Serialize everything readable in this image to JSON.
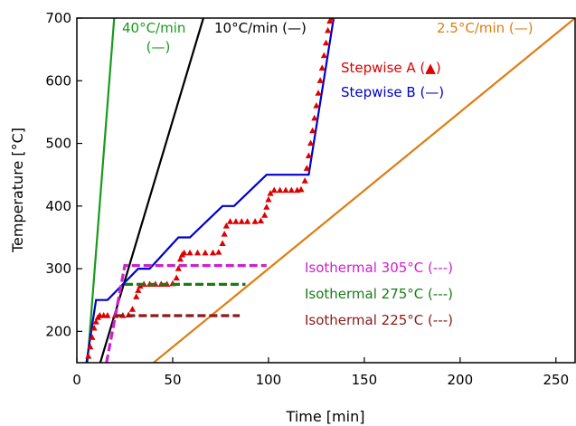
{
  "chart_data": {
    "type": "line",
    "xlabel": "Time  [min]",
    "ylabel": "Temperature  [°C]",
    "xlim": [
      0,
      260
    ],
    "ylim": [
      150,
      700
    ],
    "xticks": [
      0,
      50,
      100,
      150,
      200,
      250
    ],
    "yticks": [
      200,
      300,
      400,
      500,
      600,
      700
    ],
    "grid": false,
    "series": [
      {
        "style": "solid",
        "color": "#1a9a1a",
        "x": [
          5.5,
          19.5
        ],
        "y": [
          150,
          700
        ]
      },
      {
        "style": "solid",
        "color": "#000000",
        "x": [
          12.2,
          66
        ],
        "y": [
          150,
          700
        ]
      },
      {
        "style": "solid",
        "color": "#e07c10",
        "x": [
          40,
          260
        ],
        "y": [
          150,
          700
        ]
      },
      {
        "style": "solid",
        "color": "#0000cc",
        "x": [
          5,
          10,
          16,
          32,
          38,
          53,
          59,
          76,
          82,
          99,
          104,
          121,
          134
        ],
        "y": [
          150,
          250,
          250,
          300,
          300,
          350,
          350,
          400,
          400,
          450,
          450,
          450,
          700
        ]
      },
      {
        "style": "triangles",
        "color": "#dd0000",
        "x": [
          6,
          7,
          8,
          9,
          10,
          11,
          12,
          14,
          16,
          20,
          24,
          27,
          29,
          31,
          32,
          33,
          35,
          38,
          41,
          44,
          47,
          50,
          52,
          53,
          54,
          55,
          56,
          59,
          63,
          67,
          71,
          74,
          76,
          77,
          78,
          80,
          83,
          86,
          89,
          93,
          96,
          98,
          99,
          100,
          101,
          103,
          106,
          109,
          112,
          115,
          117,
          119,
          120,
          121,
          122,
          123,
          124,
          125,
          126,
          127,
          128,
          129,
          130,
          131,
          132,
          133
        ],
        "y": [
          160,
          175,
          190,
          205,
          215,
          222,
          225,
          225,
          225,
          225,
          225,
          226,
          235,
          255,
          265,
          272,
          275,
          275,
          275,
          275,
          275,
          276,
          285,
          300,
          315,
          322,
          325,
          325,
          325,
          325,
          325,
          326,
          340,
          355,
          368,
          375,
          375,
          375,
          375,
          375,
          376,
          385,
          398,
          410,
          420,
          425,
          425,
          425,
          425,
          425,
          426,
          440,
          460,
          480,
          500,
          520,
          540,
          560,
          580,
          600,
          620,
          640,
          660,
          680,
          695,
          700
        ]
      },
      {
        "style": "dashed",
        "color": "#cc22cc",
        "x": [
          15.5,
          25,
          99
        ],
        "y": [
          150,
          305,
          305
        ]
      },
      {
        "style": "dashed",
        "color": "#1a7a1a",
        "x": [
          25,
          88
        ],
        "y": [
          275,
          275
        ]
      },
      {
        "style": "dashed",
        "color": "#8b1a1a",
        "x": [
          20,
          85
        ],
        "y": [
          225,
          225
        ]
      }
    ],
    "annotations": [
      {
        "lines": [
          "40°C/min",
          "(—)"
        ],
        "color": "#1a9a1a"
      },
      {
        "lines": [
          "10°C/min (—)"
        ],
        "color": "#000000"
      },
      {
        "lines": [
          "2.5°C/min (—)"
        ],
        "color": "#e07c10"
      },
      {
        "lines": [
          "Stepwise A (▲)"
        ],
        "color": "#dd0000"
      },
      {
        "lines": [
          "Stepwise B (—)"
        ],
        "color": "#0000cc"
      },
      {
        "lines": [
          "Isothermal 305°C (---)"
        ],
        "color": "#cc22cc"
      },
      {
        "lines": [
          "Isothermal 275°C (---)"
        ],
        "color": "#1a7a1a"
      },
      {
        "lines": [
          "Isothermal 225°C (---)"
        ],
        "color": "#8b1a1a"
      }
    ]
  }
}
